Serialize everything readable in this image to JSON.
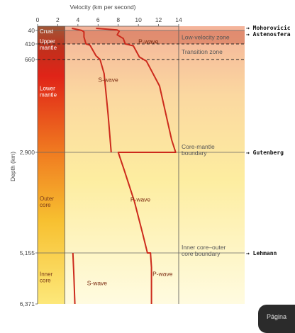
{
  "badge_text": "Página",
  "chart_data": {
    "type": "line",
    "title": "",
    "xlabel": "Velocity (km per second)",
    "ylabel": "Depth (km)",
    "xlim": [
      0,
      14
    ],
    "x_ticks": [
      0,
      2,
      4,
      6,
      8,
      10,
      12,
      14
    ],
    "y_ticks": [
      {
        "depth": 40,
        "label": "40"
      },
      {
        "depth": 410,
        "label": "410"
      },
      {
        "depth": 660,
        "label": "660"
      },
      {
        "depth": 2900,
        "label": "2,900"
      },
      {
        "depth": 5155,
        "label": "5,155"
      },
      {
        "depth": 6371,
        "label": "6,371"
      }
    ],
    "layers": [
      {
        "name": "Crust",
        "from": 0,
        "to": 40
      },
      {
        "name": "Upper mantle",
        "from": 40,
        "to": 660
      },
      {
        "name": "Lower mantle",
        "from": 660,
        "to": 2900
      },
      {
        "name": "Outer core",
        "from": 2900,
        "to": 5155
      },
      {
        "name": "Inner core",
        "from": 5155,
        "to": 6371
      }
    ],
    "zones": [
      {
        "label": "Low-velocity zone",
        "from": 40,
        "to": 410
      },
      {
        "label": "Transition zone",
        "from": 410,
        "to": 660
      }
    ],
    "boundary_labels": [
      {
        "depth": 2900,
        "label": "Core-mantle boundary"
      },
      {
        "depth": 5155,
        "label": "Inner core–outer core boundary"
      }
    ],
    "discontinuities": [
      {
        "label": "→ Mohorovicic",
        "depth": 40
      },
      {
        "label": "→ Astenosfera",
        "depth": 210
      },
      {
        "label": "→ Gutenberg",
        "depth": 2900
      },
      {
        "label": "→ Lehmann",
        "depth": 5155
      }
    ],
    "series": [
      {
        "name": "P-wave",
        "points": [
          [
            5.8,
            0
          ],
          [
            7.9,
            30
          ],
          [
            8.1,
            60
          ],
          [
            7.9,
            160
          ],
          [
            8.5,
            260
          ],
          [
            8.7,
            410
          ],
          [
            9.5,
            440
          ],
          [
            10.1,
            620
          ],
          [
            10.8,
            700
          ],
          [
            12.1,
            1300
          ],
          [
            13.3,
            2600
          ],
          [
            13.7,
            2900
          ],
          [
            8.0,
            2900
          ],
          [
            8.6,
            3300
          ],
          [
            9.6,
            4000
          ],
          [
            10.4,
            4700
          ],
          [
            10.9,
            5155
          ],
          [
            11.2,
            5155
          ],
          [
            11.3,
            5500
          ],
          [
            11.3,
            6371
          ]
        ]
      },
      {
        "name": "S-wave",
        "points": [
          [
            3.4,
            0
          ],
          [
            4.4,
            40
          ],
          [
            4.6,
            80
          ],
          [
            4.6,
            220
          ],
          [
            4.8,
            410
          ],
          [
            5.2,
            430
          ],
          [
            5.8,
            600
          ],
          [
            6.2,
            660
          ],
          [
            6.6,
            1000
          ],
          [
            7.0,
            2000
          ],
          [
            7.3,
            2900
          ]
        ]
      },
      {
        "name": "S-wave",
        "points": [
          [
            3.5,
            5155
          ],
          [
            3.6,
            5700
          ],
          [
            3.7,
            6371
          ]
        ]
      }
    ],
    "wave_labels": [
      {
        "text": "P-wave",
        "x": 11.0,
        "depth": 400
      },
      {
        "text": "S-wave",
        "x": 7.0,
        "depth": 1200
      },
      {
        "text": "P-wave",
        "x": 10.2,
        "depth": 4000
      },
      {
        "text": "P-wave",
        "x": 12.4,
        "depth": 5700
      },
      {
        "text": "S-wave",
        "x": 5.9,
        "depth": 5920
      }
    ]
  }
}
